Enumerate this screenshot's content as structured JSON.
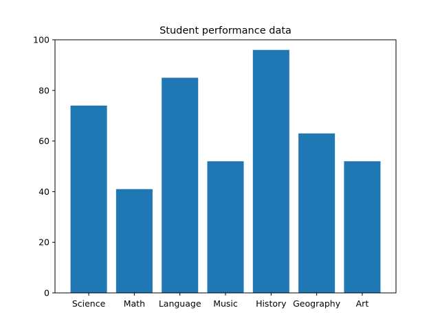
{
  "chart_data": {
    "type": "bar",
    "title": "Student performance data",
    "xlabel": "",
    "ylabel": "",
    "categories": [
      "Science",
      "Math",
      "Language",
      "Music",
      "History",
      "Geography",
      "Art"
    ],
    "values": [
      74,
      41,
      85,
      52,
      96,
      63,
      52
    ],
    "ylim": [
      0,
      100
    ],
    "yticks": [
      "0",
      "20",
      "40",
      "60",
      "80",
      "100"
    ],
    "bar_color": "#1f77b4",
    "grid": false,
    "legend": "none"
  }
}
